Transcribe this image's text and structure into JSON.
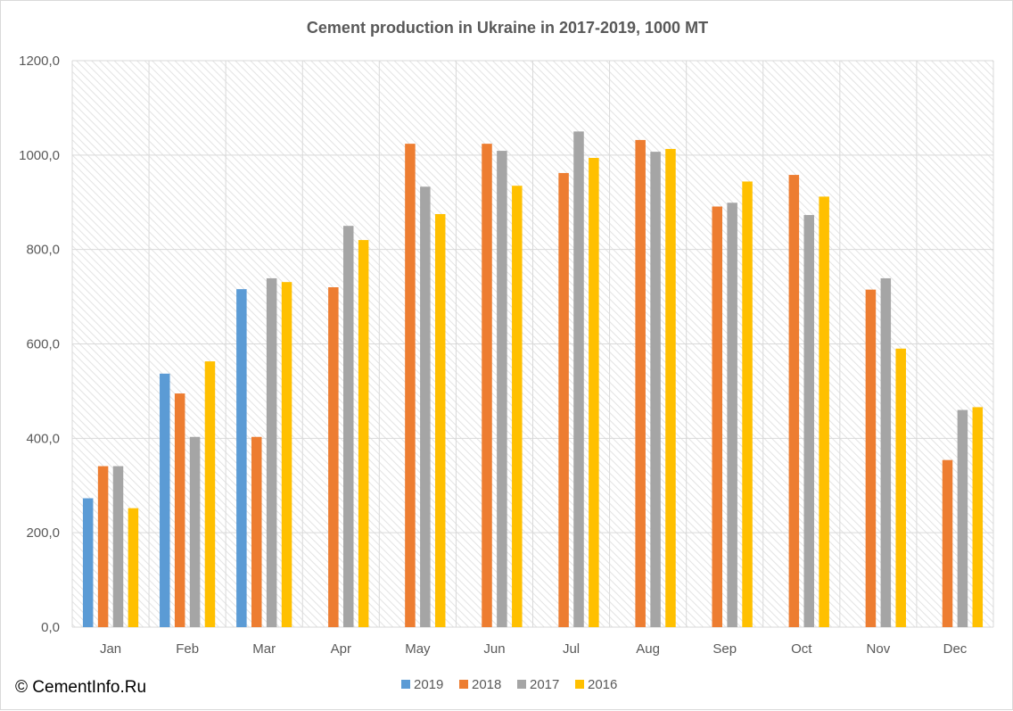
{
  "watermark": "© CementInfo.Ru",
  "chart_data": {
    "type": "bar",
    "title": "Cement production  in Ukraine in 2017-2019, 1000 MT",
    "xlabel": "",
    "ylabel": "",
    "ylim": [
      0,
      1200
    ],
    "y_ticks": [
      0,
      200,
      400,
      600,
      800,
      1000,
      1200
    ],
    "y_tick_labels": [
      "0,0",
      "200,0",
      "400,0",
      "600,0",
      "800,0",
      "1000,0",
      "1200,0"
    ],
    "categories": [
      "Jan",
      "Feb",
      "Mar",
      "Apr",
      "May",
      "Jun",
      "Jul",
      "Aug",
      "Sep",
      "Oct",
      "Nov",
      "Dec"
    ],
    "series": [
      {
        "name": "2019",
        "color": "#5b9bd5",
        "values": [
          273,
          537,
          716,
          null,
          null,
          null,
          null,
          null,
          null,
          null,
          null,
          null
        ]
      },
      {
        "name": "2018",
        "color": "#ed7d31",
        "values": [
          341,
          495,
          403,
          720,
          1024,
          1024,
          962,
          1032,
          891,
          958,
          715,
          354
        ]
      },
      {
        "name": "2017",
        "color": "#a5a5a5",
        "values": [
          341,
          403,
          739,
          850,
          933,
          1009,
          1050,
          1007,
          899,
          873,
          739,
          460
        ]
      },
      {
        "name": "2016",
        "color": "#ffc000",
        "values": [
          252,
          563,
          731,
          820,
          875,
          935,
          994,
          1013,
          944,
          912,
          590,
          466
        ]
      }
    ],
    "grid": true,
    "legend_position": "bottom"
  }
}
